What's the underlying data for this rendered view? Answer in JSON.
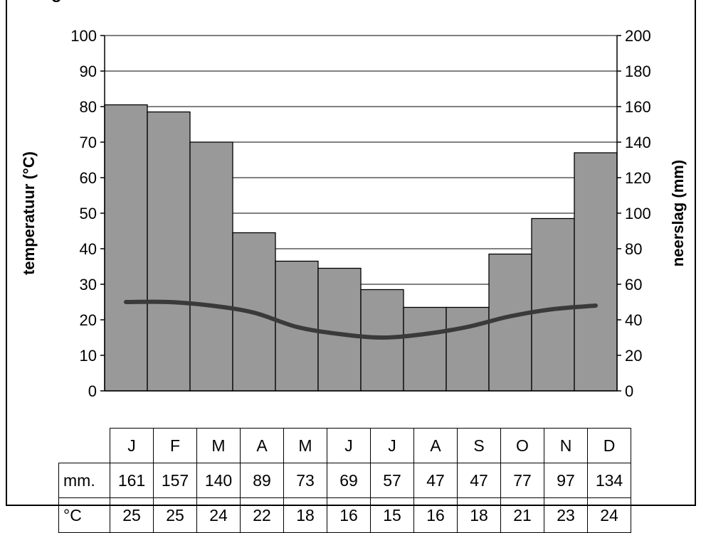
{
  "header_fragment": "g",
  "chart_data": {
    "type": "bar+line",
    "months": [
      "J",
      "F",
      "M",
      "A",
      "M",
      "J",
      "J",
      "A",
      "S",
      "O",
      "N",
      "D"
    ],
    "precipitation_mm": [
      161,
      157,
      140,
      89,
      73,
      69,
      57,
      47,
      47,
      77,
      97,
      134
    ],
    "temperature_c": [
      25,
      25,
      24,
      22,
      18,
      16,
      15,
      16,
      18,
      21,
      23,
      24
    ],
    "y_left": {
      "label": "temperatuur (°C)",
      "min": 0,
      "max": 100,
      "step": 10
    },
    "y_right": {
      "label": "neerslag (mm)",
      "min": 0,
      "max": 200,
      "step": 20
    },
    "grid": true,
    "colors": {
      "bars": "#999999",
      "line": "#3a3a3a",
      "grid": "#000000"
    }
  },
  "table": {
    "row_precip_label": "mm.",
    "row_temp_label": "°C"
  }
}
